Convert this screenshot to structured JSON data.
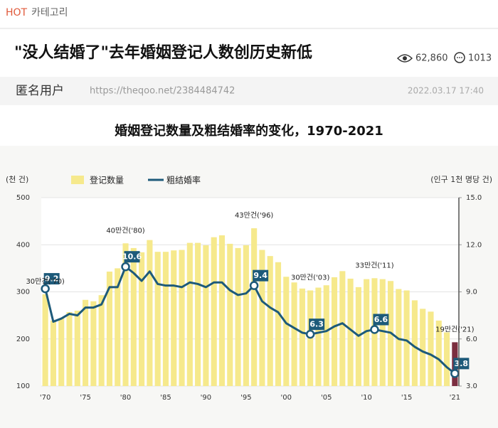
{
  "header": {
    "category_hot": "HOT",
    "category": "카테고리",
    "title": "\"没人结婚了\"去年婚姻登记人数创历史新低",
    "views": "62,860",
    "comments": "1013",
    "author": "匿名用户",
    "url": "https://theqoo.net/2384484742",
    "date": "2022.03.17 17:40"
  },
  "chart_data": {
    "type": "combo",
    "title": "婚姻登记数量及粗结婚率的变化，1970-2021",
    "y_label": "(천 건)",
    "y2_label": "(인구 1천 명당 건)",
    "x": [
      1970,
      1971,
      1972,
      1973,
      1974,
      1975,
      1976,
      1977,
      1978,
      1979,
      1980,
      1981,
      1982,
      1983,
      1984,
      1985,
      1986,
      1987,
      1988,
      1989,
      1990,
      1991,
      1992,
      1993,
      1994,
      1995,
      1996,
      1997,
      1998,
      1999,
      2000,
      2001,
      2002,
      2003,
      2004,
      2005,
      2006,
      2007,
      2008,
      2009,
      2010,
      2011,
      2012,
      2013,
      2014,
      2015,
      2016,
      2017,
      2018,
      2019,
      2020,
      2021
    ],
    "xlim": [
      1969.5,
      2021.5
    ],
    "xticks": [
      {
        "value": 1970,
        "label": "'70"
      },
      {
        "value": 1975,
        "label": "'75"
      },
      {
        "value": 1980,
        "label": "'80"
      },
      {
        "value": 1985,
        "label": "'85"
      },
      {
        "value": 1990,
        "label": "'90"
      },
      {
        "value": 1995,
        "label": "'95"
      },
      {
        "value": 2000,
        "label": "'00"
      },
      {
        "value": 2005,
        "label": "'05"
      },
      {
        "value": 2010,
        "label": "'10"
      },
      {
        "value": 2015,
        "label": "'15"
      },
      {
        "value": 2021,
        "label": "'21"
      }
    ],
    "ylim": [
      100,
      500
    ],
    "yticks": [
      100,
      200,
      300,
      400,
      500
    ],
    "y2lim": [
      3,
      15
    ],
    "y2ticks": [
      {
        "value": 3,
        "label": "3.0"
      },
      {
        "value": 6,
        "label": "6.0"
      },
      {
        "value": 9,
        "label": "9.0"
      },
      {
        "value": 12,
        "label": "12.0"
      },
      {
        "value": 15,
        "label": "15.0"
      }
    ],
    "grid": true,
    "series": [
      {
        "name": "登记数量",
        "type": "bar",
        "color": "#f6e98c",
        "values": [
          295,
          239,
          244,
          257,
          260,
          283,
          280,
          293,
          343,
          350,
          403,
          393,
          384,
          410,
          385,
          385,
          388,
          389,
          404,
          404,
          399,
          416,
          420,
          402,
          393,
          399,
          435,
          389,
          376,
          363,
          332,
          320,
          307,
          303,
          309,
          314,
          331,
          344,
          328,
          310,
          327,
          329,
          327,
          323,
          306,
          303,
          282,
          264,
          258,
          239,
          214,
          193
        ],
        "colors": [
          "#f6e98c",
          "#f6e98c",
          "#f6e98c",
          "#f6e98c",
          "#f6e98c",
          "#f6e98c",
          "#f6e98c",
          "#f6e98c",
          "#f6e98c",
          "#f6e98c",
          "#f6e98c",
          "#f6e98c",
          "#f6e98c",
          "#f6e98c",
          "#f6e98c",
          "#f6e98c",
          "#f6e98c",
          "#f6e98c",
          "#f6e98c",
          "#f6e98c",
          "#f6e98c",
          "#f6e98c",
          "#f6e98c",
          "#f6e98c",
          "#f6e98c",
          "#f6e98c",
          "#f6e98c",
          "#f6e98c",
          "#f6e98c",
          "#f6e98c",
          "#f6e98c",
          "#f6e98c",
          "#f6e98c",
          "#f6e98c",
          "#f6e98c",
          "#f6e98c",
          "#f6e98c",
          "#f6e98c",
          "#f6e98c",
          "#f6e98c",
          "#f6e98c",
          "#f6e98c",
          "#f6e98c",
          "#f6e98c",
          "#f6e98c",
          "#f6e98c",
          "#f6e98c",
          "#f6e98c",
          "#f6e98c",
          "#f6e98c",
          "#f6e98c",
          "#7b2e40"
        ]
      },
      {
        "name": "粗结婚率",
        "type": "line",
        "axis": "y2",
        "color": "#1d5a7a",
        "values": [
          9.2,
          7.1,
          7.3,
          7.6,
          7.5,
          8.0,
          8.0,
          8.2,
          9.3,
          9.3,
          10.6,
          10.2,
          9.7,
          10.3,
          9.5,
          9.4,
          9.4,
          9.3,
          9.6,
          9.5,
          9.3,
          9.6,
          9.6,
          9.1,
          8.8,
          8.9,
          9.4,
          8.4,
          8.0,
          7.7,
          7.0,
          6.7,
          6.4,
          6.3,
          6.4,
          6.5,
          6.8,
          7.0,
          6.6,
          6.2,
          6.5,
          6.6,
          6.5,
          6.4,
          6.0,
          5.9,
          5.5,
          5.2,
          5.0,
          4.7,
          4.2,
          3.8
        ],
        "label_x": [
          1970,
          1980,
          1996,
          2003,
          2011,
          2021
        ]
      }
    ],
    "annotations": [
      {
        "text": "30만건('70)",
        "x": 1970
      },
      {
        "text": "40만건('80)",
        "x": 1980
      },
      {
        "text": "43만건('96)",
        "x": 1996
      },
      {
        "text": "30만건('03)",
        "x": 2003
      },
      {
        "text": "33만건('11)",
        "x": 2011
      },
      {
        "text": "19만건('21)",
        "x": 2021
      }
    ]
  }
}
